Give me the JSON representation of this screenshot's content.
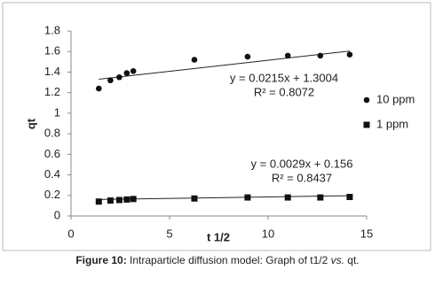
{
  "chart_data": {
    "type": "scatter",
    "x_label": "t 1/2",
    "y_label": "qt",
    "xlim": [
      0,
      15
    ],
    "xticks": [
      0,
      5,
      10,
      15
    ],
    "ylim": [
      0,
      1.8
    ],
    "yticks": [
      0,
      0.2,
      0.4,
      0.6,
      0.8,
      1,
      1.2,
      1.4,
      1.6,
      1.8
    ],
    "grid": false,
    "legend": "right",
    "series": [
      {
        "name": "10 ppm",
        "color": "#111111",
        "marker": "circle",
        "x": [
          1.41,
          2.0,
          2.45,
          2.83,
          3.16,
          6.26,
          8.96,
          11.0,
          12.65,
          14.14
        ],
        "values": [
          1.24,
          1.32,
          1.35,
          1.39,
          1.41,
          1.52,
          1.55,
          1.56,
          1.56,
          1.57
        ],
        "trendline": {
          "slope": 0.0215,
          "intercept": 1.3004,
          "label": "y = 0.0215x + 1.3004",
          "r2_label": "R² = 0.8072"
        }
      },
      {
        "name": "1 ppm",
        "color": "#111111",
        "marker": "square",
        "x": [
          1.41,
          2.0,
          2.45,
          2.83,
          3.16,
          6.26,
          8.96,
          11.0,
          12.65,
          14.14
        ],
        "values": [
          0.14,
          0.15,
          0.155,
          0.16,
          0.165,
          0.17,
          0.18,
          0.18,
          0.18,
          0.185
        ],
        "trendline": {
          "slope": 0.0029,
          "intercept": 0.156,
          "label": "y = 0.0029x + 0.156",
          "r2_label": "R² = 0.8437"
        }
      }
    ]
  },
  "caption": {
    "label": "Figure 10:",
    "text": " Intraparticle diffusion model: Graph of t1/2 ",
    "italic": "vs.",
    "end": " qt."
  }
}
